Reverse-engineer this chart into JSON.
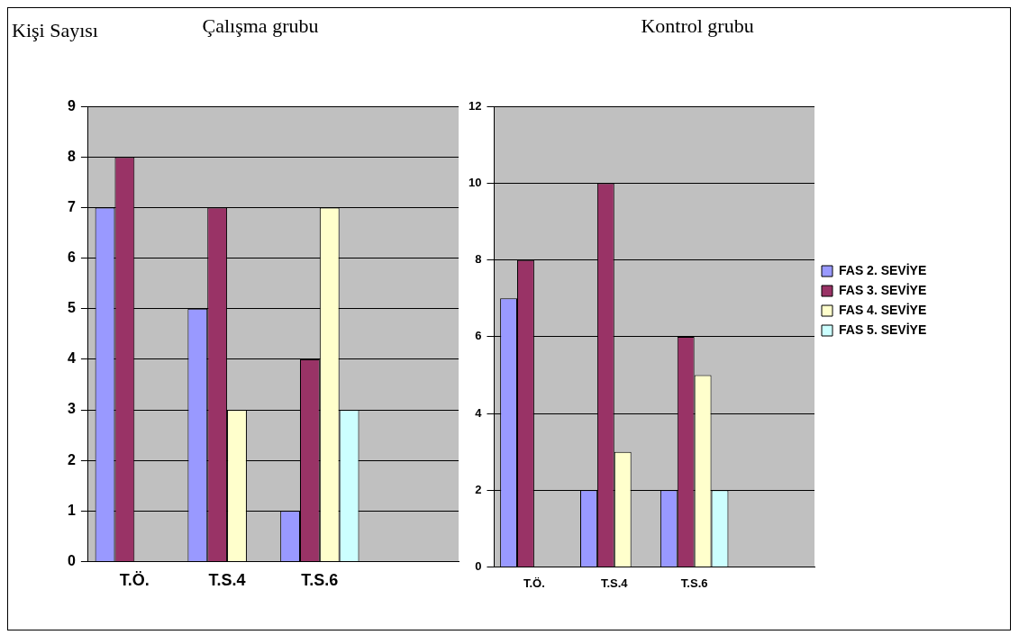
{
  "chart_data": [
    {
      "type": "bar",
      "title": "Çalışma grubu",
      "ylabel": "Kişi Sayısı",
      "categories": [
        "T.Ö.",
        "T.S.4",
        "T.S.6",
        null
      ],
      "series": [
        {
          "color": "#9999ff",
          "values": [
            7,
            5,
            1,
            null
          ]
        },
        {
          "color": "#993366",
          "values": [
            8,
            7,
            4,
            null
          ]
        },
        {
          "color": "#ffffcc",
          "values": [
            null,
            3,
            7,
            null
          ]
        },
        {
          "color": "#ccffff",
          "values": [
            null,
            null,
            3,
            null
          ]
        }
      ],
      "ylim": [
        0,
        9
      ],
      "yticks": [
        0,
        1,
        2,
        3,
        4,
        5,
        6,
        7,
        8,
        9
      ],
      "grid": "y",
      "legend": false
    },
    {
      "type": "bar",
      "title": "Kontrol grubu",
      "categories": [
        "T.Ö.",
        "T.S.4",
        "T.S.6",
        null
      ],
      "series": [
        {
          "name": "FAS 2. SEVİYE",
          "color": "#9999ff",
          "values": [
            7,
            2,
            2,
            null
          ]
        },
        {
          "name": "FAS 3. SEVİYE",
          "color": "#993366",
          "values": [
            8,
            10,
            6,
            null
          ]
        },
        {
          "name": "FAS 4. SEVİYE",
          "color": "#ffffcc",
          "values": [
            null,
            3,
            5,
            null
          ]
        },
        {
          "name": "FAS 5. SEVİYE",
          "color": "#ccffff",
          "values": [
            null,
            null,
            2,
            null
          ]
        }
      ],
      "ylim": [
        0,
        12
      ],
      "yticks": [
        0,
        2,
        4,
        6,
        8,
        10,
        12
      ],
      "grid": "y",
      "legend": "right"
    }
  ]
}
